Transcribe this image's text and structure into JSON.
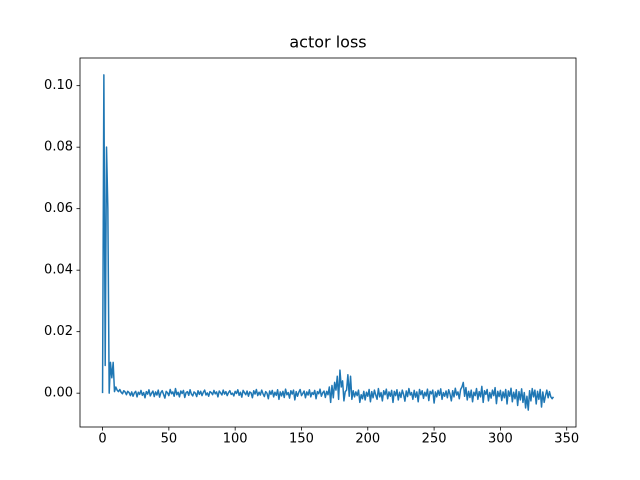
{
  "chart_data": {
    "type": "line",
    "title": "actor loss",
    "x": [
      0,
      1,
      2,
      3,
      4,
      5,
      6,
      7,
      8,
      9,
      10,
      11,
      12,
      13,
      14,
      15,
      16,
      17,
      18,
      19,
      20,
      21,
      22,
      23,
      24,
      25,
      26,
      27,
      28,
      29,
      30,
      31,
      32,
      33,
      34,
      35,
      36,
      37,
      38,
      39,
      40,
      41,
      42,
      43,
      44,
      45,
      46,
      47,
      48,
      49,
      50,
      51,
      52,
      53,
      54,
      55,
      56,
      57,
      58,
      59,
      60,
      61,
      62,
      63,
      64,
      65,
      66,
      67,
      68,
      69,
      70,
      71,
      72,
      73,
      74,
      75,
      76,
      77,
      78,
      79,
      80,
      81,
      82,
      83,
      84,
      85,
      86,
      87,
      88,
      89,
      90,
      91,
      92,
      93,
      94,
      95,
      96,
      97,
      98,
      99,
      100,
      101,
      102,
      103,
      104,
      105,
      106,
      107,
      108,
      109,
      110,
      111,
      112,
      113,
      114,
      115,
      116,
      117,
      118,
      119,
      120,
      121,
      122,
      123,
      124,
      125,
      126,
      127,
      128,
      129,
      130,
      131,
      132,
      133,
      134,
      135,
      136,
      137,
      138,
      139,
      140,
      141,
      142,
      143,
      144,
      145,
      146,
      147,
      148,
      149,
      150,
      151,
      152,
      153,
      154,
      155,
      156,
      157,
      158,
      159,
      160,
      161,
      162,
      163,
      164,
      165,
      166,
      167,
      168,
      169,
      170,
      171,
      172,
      173,
      174,
      175,
      176,
      177,
      178,
      179,
      180,
      181,
      182,
      183,
      184,
      185,
      186,
      187,
      188,
      189,
      190,
      191,
      192,
      193,
      194,
      195,
      196,
      197,
      198,
      199,
      200,
      201,
      202,
      203,
      204,
      205,
      206,
      207,
      208,
      209,
      210,
      211,
      212,
      213,
      214,
      215,
      216,
      217,
      218,
      219,
      220,
      221,
      222,
      223,
      224,
      225,
      226,
      227,
      228,
      229,
      230,
      231,
      232,
      233,
      234,
      235,
      236,
      237,
      238,
      239,
      240,
      241,
      242,
      243,
      244,
      245,
      246,
      247,
      248,
      249,
      250,
      251,
      252,
      253,
      254,
      255,
      256,
      257,
      258,
      259,
      260,
      261,
      262,
      263,
      264,
      265,
      266,
      267,
      268,
      269,
      270,
      271,
      272,
      273,
      274,
      275,
      276,
      277,
      278,
      279,
      280,
      281,
      282,
      283,
      284,
      285,
      286,
      287,
      288,
      289,
      290,
      291,
      292,
      293,
      294,
      295,
      296,
      297,
      298,
      299,
      300,
      301,
      302,
      303,
      304,
      305,
      306,
      307,
      308,
      309,
      310,
      311,
      312,
      313,
      314,
      315,
      316,
      317,
      318,
      319,
      320,
      321,
      322,
      323,
      324,
      325,
      326,
      327,
      328,
      329,
      330,
      331,
      332,
      333,
      334,
      335,
      336,
      337,
      338,
      339,
      340
    ],
    "series": [
      {
        "color": "#1f77b4",
        "values": [
          0,
          0.1035,
          0.009,
          0.08,
          0.06,
          0.0,
          0.01,
          0.005,
          0.01,
          0.0005,
          0.002,
          0.001,
          0.0005,
          0.0012,
          0.0003,
          -0.0002,
          0.0008,
          0.0004,
          -0.0005,
          0.0006,
          0.0002,
          -0.0008,
          0.0004,
          -0.001,
          0.0001,
          0.0006,
          -0.0012,
          0.0003,
          -0.0004,
          0.0009,
          -0.0007,
          0.0002,
          -0.0015,
          0.0005,
          -0.0003,
          0.0011,
          -0.0009,
          0.0,
          0.0007,
          -0.0011,
          0.0004,
          -0.0006,
          0.001,
          -0.0013,
          0.0002,
          0.0008,
          -0.0004,
          -0.0016,
          0.0006,
          0.0001,
          -0.0008,
          0.0012,
          -0.0002,
          0.0004,
          -0.001,
          0.0015,
          -0.0005,
          0.0003,
          -0.0012,
          0.0007,
          -0.0001,
          0.0009,
          -0.0014,
          0.0002,
          0.0005,
          -0.0007,
          0.0011,
          -0.0003,
          -0.0009,
          0.0004,
          0.0,
          -0.0011,
          0.0008,
          -0.0004,
          0.0006,
          -0.0008,
          0.0003,
          0.001,
          -0.0006,
          0.0001,
          -0.001,
          0.0005,
          0.0002,
          -0.0005,
          0.0009,
          -0.0002,
          0.0004,
          -0.0012,
          0.0007,
          0.0001,
          -0.0006,
          0.001,
          -0.0003,
          0.0005,
          -0.0008,
          0.0002,
          0.0008,
          -0.0004,
          0.0,
          -0.0009,
          0.0006,
          -0.0001,
          0.0011,
          -0.0007,
          0.0003,
          -0.0013,
          0.0009,
          0.0002,
          -0.0005,
          0.0007,
          -0.001,
          0.0004,
          0.0001,
          -0.0015,
          0.0008,
          -0.0003,
          0.0012,
          -0.0008,
          0.0003,
          -0.0006,
          0.001,
          -0.0002,
          -0.0011,
          0.0005,
          0.0,
          -0.0018,
          0.0007,
          -0.0004,
          0.0009,
          -0.0012,
          0.0003,
          -0.0007,
          0.0011,
          -0.002,
          0.0004,
          -0.0009,
          0.0006,
          -0.0014,
          0.0013,
          -0.0005,
          0.0002,
          -0.0016,
          0.0008,
          -0.0003,
          0.001,
          -0.0022,
          0.0005,
          -0.001,
          0.0003,
          0.0012,
          -0.0008,
          -0.0001,
          0.0007,
          -0.0015,
          0.0004,
          -0.0006,
          0.0011,
          -0.0012,
          0.0002,
          -0.0004,
          0.0009,
          -0.0018,
          0.0005,
          -0.0002,
          0.0013,
          -0.001,
          0.0001,
          0.0007,
          -0.0014,
          0.0006,
          -0.0005,
          0.002,
          -0.003,
          0.0025,
          -0.0015,
          0.0035,
          0.001,
          0.0055,
          -0.002,
          0.0075,
          0.002,
          0.004,
          -0.0025,
          0.0005,
          0.001,
          0.006,
          -0.001,
          0.0055,
          -0.002,
          0.0008,
          -0.0012,
          0.0004,
          -0.0008,
          0.001,
          -0.003,
          -0.0005,
          -0.0018,
          0.0006,
          -0.0022,
          0.0003,
          -0.001,
          0.0012,
          -0.0028,
          0.0005,
          -0.0015,
          0.001,
          -0.0006,
          -0.002,
          0.0015,
          -0.0012,
          0.0002,
          -0.0025,
          0.0008,
          -0.0005,
          0.0013,
          -0.0018,
          0.0004,
          -0.001,
          0.0009,
          -0.003,
          0.0006,
          -0.0008,
          0.0011,
          -0.0022,
          0.0003,
          -0.0014,
          0.001,
          -0.0004,
          -0.0026,
          0.0007,
          -0.0011,
          0.0015,
          -0.0006,
          0.0002,
          -0.002,
          0.0009,
          -0.0013,
          0.0004,
          -0.0028,
          0.0012,
          -0.0005,
          0.0008,
          -0.0017,
          0.0003,
          -0.0009,
          0.0013,
          -0.0024,
          0.0006,
          -0.0002,
          0.001,
          -0.0032,
          0.0004,
          -0.0012,
          0.0009,
          -0.0007,
          0.0014,
          -0.002,
          0.0002,
          -0.001,
          0.0007,
          -0.0015,
          0.0011,
          -0.0003,
          -0.0025,
          0.0008,
          -0.0012,
          0.0016,
          -0.0006,
          0.0004,
          -0.0018,
          0.0012,
          0.002,
          0.0035,
          -0.001,
          0.0018,
          -0.0022,
          0.0006,
          -0.0014,
          0.001,
          -0.0028,
          0.0003,
          -0.0008,
          0.0015,
          -0.002,
          0.0005,
          -0.0012,
          0.0022,
          -0.003,
          0.0008,
          -0.0004,
          0.0012,
          -0.0025,
          0.0002,
          -0.0016,
          0.001,
          -0.0008,
          0.0018,
          -0.0034,
          0.0006,
          -0.0011,
          0.0009,
          -0.0024,
          0.0004,
          -0.0015,
          0.0012,
          -0.0035,
          0.0007,
          -0.001,
          0.0016,
          -0.0028,
          0.0003,
          -0.0018,
          0.0011,
          -0.004,
          0.0005,
          -0.0022,
          0.0014,
          -0.003,
          0.0002,
          -0.0048,
          -0.001,
          -0.0055,
          0.0008,
          -0.0025,
          0.0015,
          -0.0012,
          0.001,
          -0.0035,
          0.0006,
          -0.002,
          0.0012,
          -0.0045,
          0.0004,
          -0.003,
          -0.0008,
          0.001,
          -0.0015,
          0.0005,
          -0.0012,
          -0.0018,
          -0.0012
        ]
      }
    ],
    "xlim": [
      -17,
      357
    ],
    "xticks": [
      0,
      50,
      100,
      150,
      200,
      250,
      300,
      350
    ],
    "ylim": [
      -0.011,
      0.109
    ],
    "yticks": [
      {
        "value": 0,
        "label": "0.00"
      },
      {
        "value": 0.02,
        "label": "0.02"
      },
      {
        "value": 0.04,
        "label": "0.04"
      },
      {
        "value": 0.06,
        "label": "0.06"
      },
      {
        "value": 0.08,
        "label": "0.08"
      },
      {
        "value": 0.1,
        "label": "0.10"
      }
    ]
  }
}
